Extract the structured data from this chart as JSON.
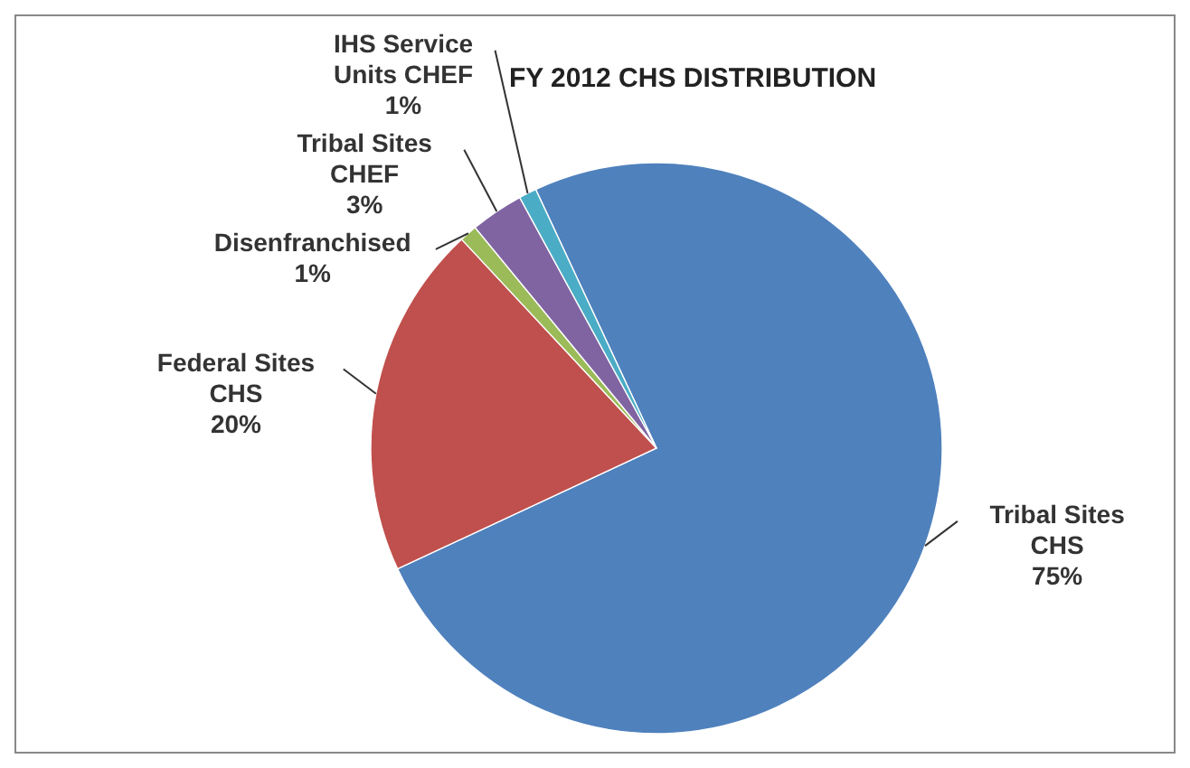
{
  "chart_data": {
    "type": "pie",
    "title": "FY 2012 CHS DISTRIBUTION",
    "categories": [
      "Tribal Sites CHS",
      "Federal Sites CHS",
      "Disenfranchised",
      "Tribal Sites CHEF",
      "IHS Service Units CHEF"
    ],
    "values": [
      75,
      20,
      1,
      3,
      1
    ],
    "colors": [
      "#4f81bd",
      "#c0504d",
      "#9bbb59",
      "#8064a2",
      "#4bacc6"
    ],
    "value_labels": [
      "75%",
      "20%",
      "1%",
      "3%",
      "1%"
    ],
    "legend": false
  }
}
